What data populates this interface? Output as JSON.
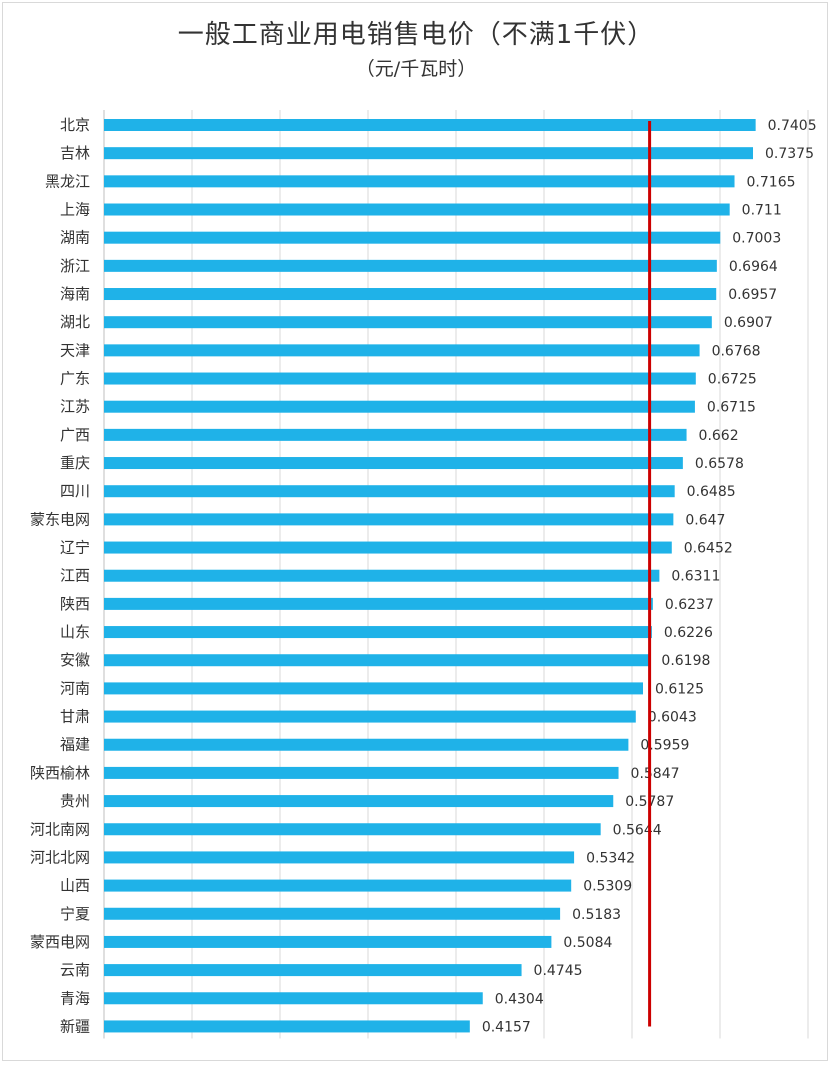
{
  "chart_data": {
    "type": "bar",
    "orientation": "horizontal",
    "title": "一般工商业用电销售电价（不满1千伏）",
    "subtitle": "（元/千瓦时）",
    "xlim": [
      0,
      0.8
    ],
    "grid": true,
    "bar_color": "#1fb2e8",
    "reference_line": {
      "value": 0.62,
      "color": "#cc0000"
    },
    "categories": [
      "北京",
      "吉林",
      "黑龙江",
      "上海",
      "湖南",
      "浙江",
      "海南",
      "湖北",
      "天津",
      "广东",
      "江苏",
      "广西",
      "重庆",
      "四川",
      "蒙东电网",
      "辽宁",
      "江西",
      "陕西",
      "山东",
      "安徽",
      "河南",
      "甘肃",
      "福建",
      "陕西榆林",
      "贵州",
      "河北南网",
      "河北北网",
      "山西",
      "宁夏",
      "蒙西电网",
      "云南",
      "青海",
      "新疆"
    ],
    "values": [
      0.7405,
      0.7375,
      0.7165,
      0.711,
      0.7003,
      0.6964,
      0.6957,
      0.6907,
      0.6768,
      0.6725,
      0.6715,
      0.662,
      0.6578,
      0.6485,
      0.647,
      0.6452,
      0.6311,
      0.6237,
      0.6226,
      0.6198,
      0.6125,
      0.6043,
      0.5959,
      0.5847,
      0.5787,
      0.5644,
      0.5342,
      0.5309,
      0.5183,
      0.5084,
      0.4745,
      0.4304,
      0.4157
    ],
    "labels": [
      "0.7405",
      "0.7375",
      "0.7165",
      "0.711",
      "0.7003",
      "0.6964",
      "0.6957",
      "0.6907",
      "0.6768",
      "0.6725",
      "0.6715",
      "0.662",
      "0.6578",
      "0.6485",
      "0.647",
      "0.6452",
      "0.6311",
      "0.6237",
      "0.6226",
      "0.6198",
      "0.6125",
      "0.6043",
      "0.5959",
      "0.5847",
      "0.5787",
      "0.5644",
      "0.5342",
      "0.5309",
      "0.5183",
      "0.5084",
      "0.4745",
      "0.4304",
      "0.4157"
    ]
  }
}
